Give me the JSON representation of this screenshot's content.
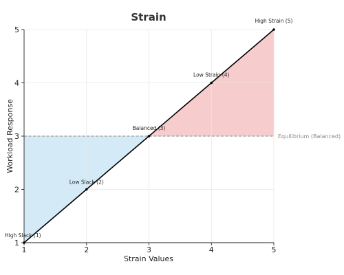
{
  "chart_data": {
    "type": "line",
    "title": "Strain",
    "xlabel": "Strain Values",
    "ylabel": "Workload Response",
    "xlim": [
      1,
      5
    ],
    "ylim": [
      1,
      5
    ],
    "xticks": [
      1,
      2,
      3,
      4,
      5
    ],
    "yticks": [
      1,
      2,
      3,
      4,
      5
    ],
    "grid": true,
    "series": [
      {
        "values_x": [
          1,
          2,
          3,
          4,
          5
        ],
        "values_y": [
          1,
          2,
          3,
          4,
          5
        ],
        "color": "#000000"
      }
    ],
    "points": [
      {
        "x": 1,
        "y": 1,
        "label": "High Slack (1)"
      },
      {
        "x": 2,
        "y": 2,
        "label": "Low Slack (2)"
      },
      {
        "x": 3,
        "y": 3,
        "label": "Balanced (3)"
      },
      {
        "x": 4,
        "y": 4,
        "label": "Low Strain (4)"
      },
      {
        "x": 5,
        "y": 5,
        "label": "High Strain (5)"
      }
    ],
    "reference_line": {
      "y": 3,
      "label": "Equilibrium (Balanced)",
      "color": "#8a8a8a",
      "style": "dashed"
    },
    "shaded_regions": [
      {
        "name": "slack",
        "x_from": 1,
        "x_to": 3,
        "between": "line-and-reference",
        "color": "#d4eaf7"
      },
      {
        "name": "strain",
        "x_from": 3,
        "x_to": 5,
        "between": "line-and-reference",
        "color": "#f7cccc"
      }
    ]
  }
}
